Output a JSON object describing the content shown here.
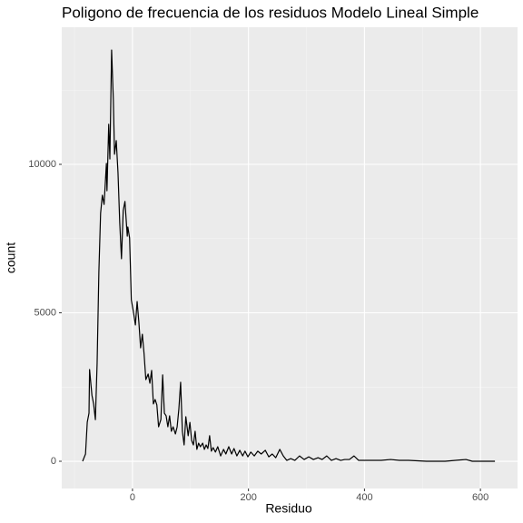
{
  "chart_data": {
    "type": "line",
    "title": "Poligono de frecuencia de los residuos Modelo Lineal Simple",
    "xlabel": "Residuo",
    "ylabel": "count",
    "series": [
      {
        "color": "#000000",
        "x": [
          -86,
          -81,
          -78,
          -75,
          -74,
          -70,
          -67,
          -64,
          -61,
          -58,
          -55,
          -52,
          -49,
          -45,
          -44,
          -41,
          -39,
          -36,
          -33,
          -31,
          -28,
          -25,
          -22,
          -19,
          -16,
          -13,
          -9,
          -8,
          -5,
          -2,
          2,
          5,
          8,
          11,
          14,
          17,
          20,
          23,
          27,
          30,
          33,
          36,
          39,
          42,
          45,
          49,
          52,
          55,
          58,
          61,
          64,
          67,
          70,
          74,
          77,
          80,
          83,
          86,
          89,
          92,
          96,
          99,
          102,
          105,
          108,
          111,
          114,
          117,
          121,
          124,
          127,
          130,
          133,
          136,
          139,
          143,
          147,
          152,
          157,
          161,
          166,
          171,
          175,
          180,
          185,
          190,
          194,
          199,
          204,
          210,
          216,
          222,
          229,
          235,
          241,
          247,
          254,
          260,
          266,
          273,
          280,
          288,
          296,
          304,
          312,
          320,
          327,
          335,
          343,
          351,
          359,
          366,
          374,
          382,
          390,
          398,
          413,
          429,
          445,
          460,
          476,
          507,
          539,
          575,
          586,
          625
        ],
        "values": [
          0,
          245,
          1315,
          1620,
          3090,
          2230,
          1930,
          1400,
          3300,
          6360,
          8350,
          8960,
          8650,
          10030,
          9110,
          11350,
          10180,
          13850,
          12170,
          10340,
          10800,
          9720,
          8040,
          6820,
          8440,
          8750,
          7580,
          7890,
          7520,
          5440,
          4980,
          4590,
          5380,
          4680,
          3820,
          4280,
          3610,
          2750,
          2940,
          2630,
          3060,
          1930,
          2080,
          1900,
          1160,
          1410,
          2910,
          1620,
          1530,
          1160,
          1530,
          1010,
          1160,
          920,
          1160,
          1770,
          2660,
          1010,
          550,
          1500,
          860,
          1310,
          700,
          550,
          1010,
          400,
          610,
          490,
          610,
          400,
          550,
          430,
          860,
          340,
          460,
          310,
          490,
          180,
          400,
          245,
          490,
          245,
          430,
          180,
          370,
          180,
          340,
          150,
          310,
          180,
          340,
          245,
          370,
          150,
          245,
          120,
          400,
          180,
          30,
          90,
          30,
          180,
          60,
          150,
          60,
          120,
          60,
          180,
          30,
          90,
          30,
          60,
          60,
          180,
          30,
          30,
          30,
          30,
          60,
          30,
          30,
          0,
          0,
          60,
          0,
          0
        ]
      }
    ],
    "xlim": [
      -122,
      664
    ],
    "ylim": [
      -917,
      14618
    ],
    "xticks": [
      0,
      200,
      400,
      600
    ],
    "yticks": [
      0,
      5000,
      10000
    ],
    "x_minor_ticks": [
      -100,
      100,
      300,
      500
    ],
    "y_minor_ticks": [
      2500,
      7500,
      12500
    ],
    "grid": true
  }
}
